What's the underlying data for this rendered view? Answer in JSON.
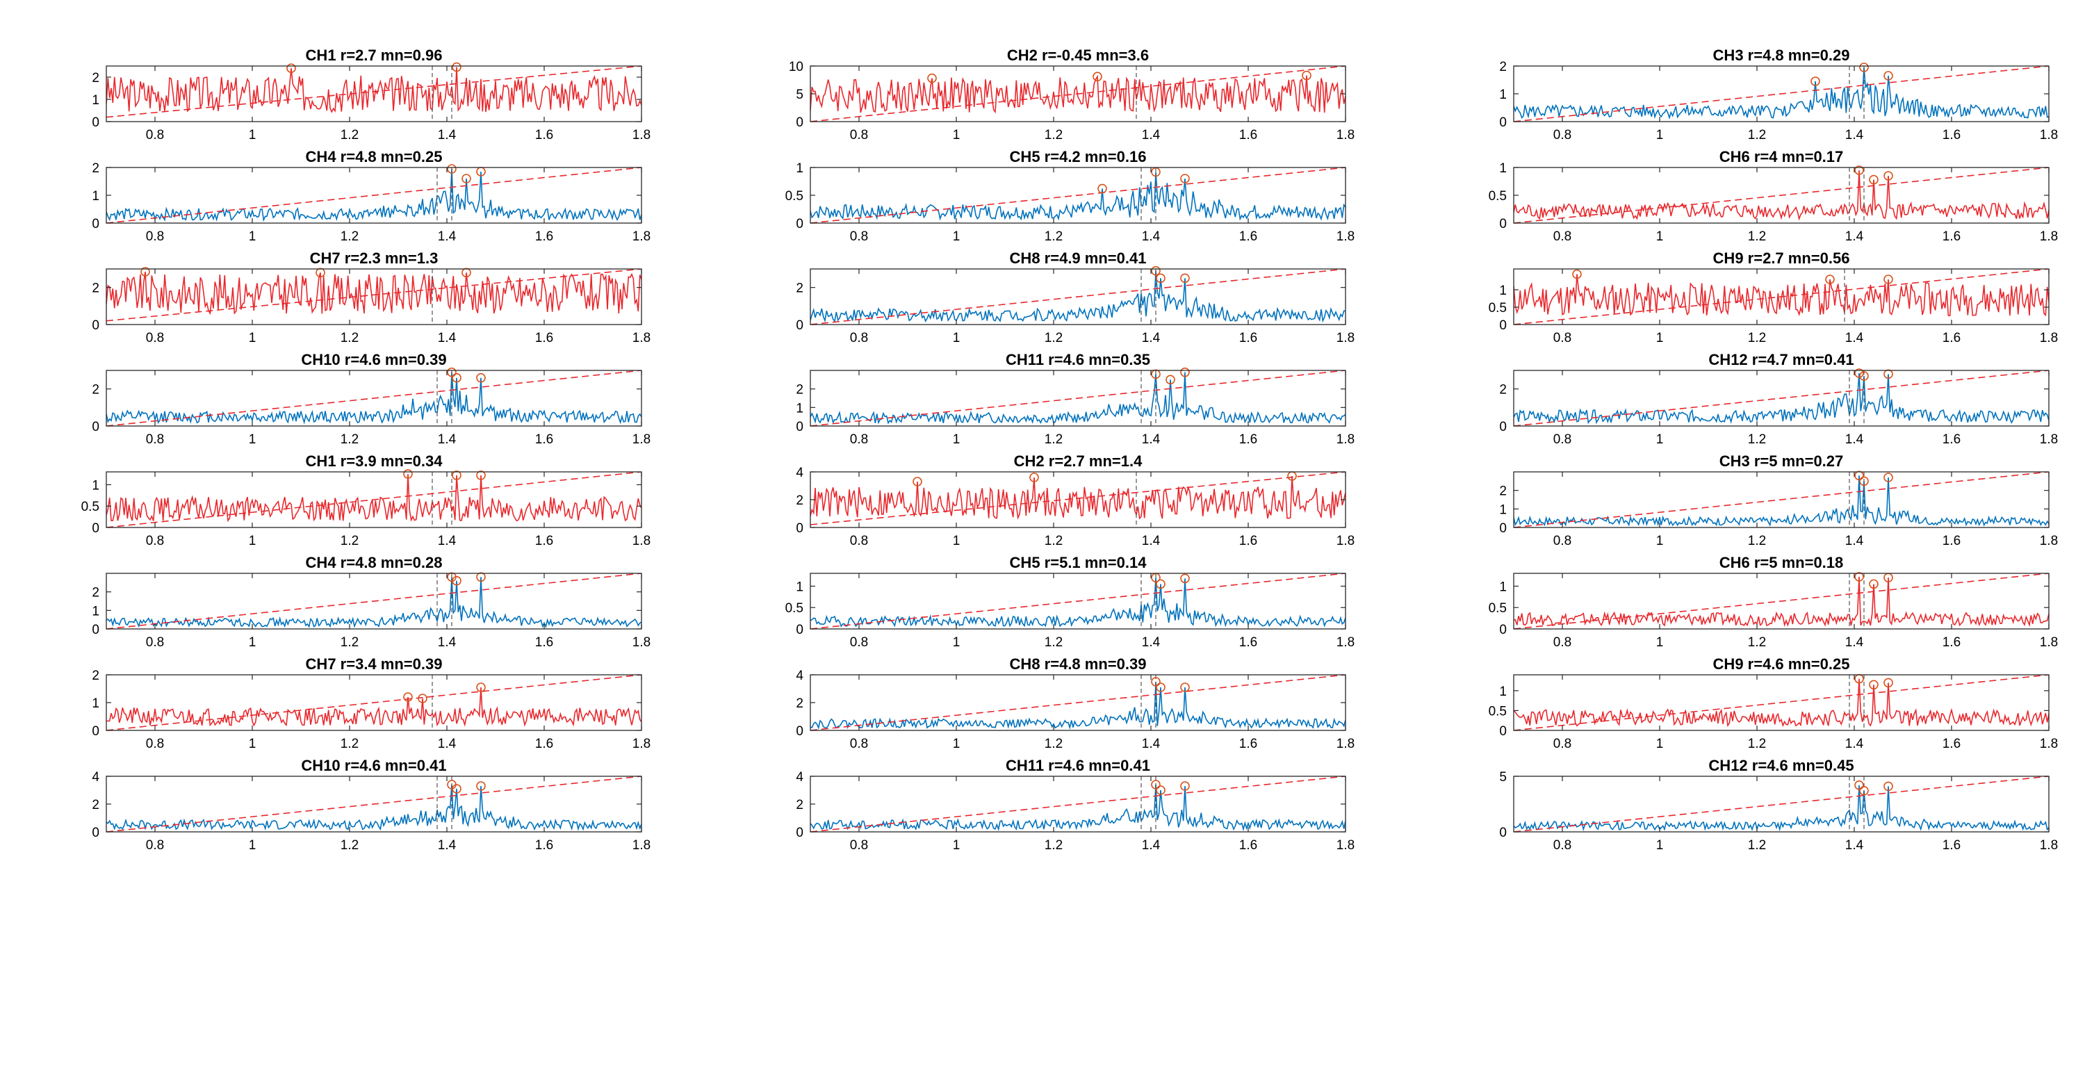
{
  "figure": {
    "rows": 8,
    "columns": 3,
    "colors": {
      "flagged_series": "#e8282d",
      "normal_series": "#0072bd",
      "threshold_line": "#e8282d",
      "marker": "#d95319",
      "axes": "#262626"
    }
  },
  "chart_data": [
    {
      "title": "CH1 r=2.7 mn=0.96",
      "type": "line",
      "color": "red",
      "xlim": [
        0.7,
        1.8
      ],
      "ylim": [
        0,
        2.5
      ],
      "yticks": [
        0,
        1,
        2
      ],
      "xticks": [
        0.8,
        1,
        1.2,
        1.4,
        1.6,
        1.8
      ],
      "threshold": [
        0.2,
        2.5
      ],
      "peaks": [
        [
          1.08,
          2.4
        ],
        [
          1.42,
          2.45
        ]
      ],
      "base": 0.96,
      "noise": 0.55,
      "vlines": [
        1.37,
        1.41
      ]
    },
    {
      "title": "CH2 r=-0.45 mn=3.6",
      "type": "line",
      "color": "red",
      "xlim": [
        0.7,
        1.8
      ],
      "ylim": [
        0,
        10
      ],
      "yticks": [
        0,
        5,
        10
      ],
      "xticks": [
        0.8,
        1,
        1.2,
        1.4,
        1.6,
        1.8
      ],
      "threshold": [
        0,
        10
      ],
      "peaks": [
        [
          0.95,
          7.8
        ],
        [
          1.29,
          8.1
        ],
        [
          1.72,
          8.3
        ]
      ],
      "base": 3.6,
      "noise": 0.6,
      "vlines": [
        1.37
      ]
    },
    {
      "title": "CH3 r=4.8 mn=0.29",
      "type": "line",
      "color": "blue",
      "xlim": [
        0.7,
        1.8
      ],
      "ylim": [
        0,
        2
      ],
      "yticks": [
        0,
        1,
        2
      ],
      "xticks": [
        0.8,
        1,
        1.2,
        1.4,
        1.6,
        1.8
      ],
      "threshold": [
        0,
        2
      ],
      "peaks": [
        [
          1.32,
          1.45
        ],
        [
          1.42,
          1.95
        ],
        [
          1.47,
          1.65
        ]
      ],
      "base": 0.29,
      "noise": 0.5,
      "vlines": [
        1.39,
        1.42
      ]
    },
    {
      "title": "CH4 r=4.8 mn=0.25",
      "type": "line",
      "color": "blue",
      "xlim": [
        0.7,
        1.8
      ],
      "ylim": [
        0,
        2
      ],
      "yticks": [
        0,
        1,
        2
      ],
      "xticks": [
        0.8,
        1,
        1.2,
        1.4,
        1.6,
        1.8
      ],
      "threshold": [
        0,
        2
      ],
      "peaks": [
        [
          1.41,
          1.95
        ],
        [
          1.44,
          1.6
        ],
        [
          1.47,
          1.85
        ]
      ],
      "base": 0.25,
      "noise": 0.5,
      "vlines": [
        1.38,
        1.41
      ]
    },
    {
      "title": "CH5 r=4.2 mn=0.16",
      "type": "line",
      "color": "blue",
      "xlim": [
        0.7,
        1.8
      ],
      "ylim": [
        0,
        1
      ],
      "yticks": [
        0,
        0.5,
        1
      ],
      "xticks": [
        0.8,
        1,
        1.2,
        1.4,
        1.6,
        1.8
      ],
      "threshold": [
        0,
        1
      ],
      "peaks": [
        [
          1.3,
          0.62
        ],
        [
          1.41,
          0.92
        ],
        [
          1.47,
          0.8
        ]
      ],
      "base": 0.16,
      "noise": 0.5,
      "vlines": [
        1.38,
        1.41
      ]
    },
    {
      "title": "CH6 r=4 mn=0.17",
      "type": "line",
      "color": "red",
      "xlim": [
        0.7,
        1.8
      ],
      "ylim": [
        0,
        1
      ],
      "yticks": [
        0,
        0.5,
        1
      ],
      "xticks": [
        0.8,
        1,
        1.2,
        1.4,
        1.6,
        1.8
      ],
      "threshold": [
        0,
        1
      ],
      "peaks": [
        [
          1.41,
          0.95
        ],
        [
          1.44,
          0.78
        ],
        [
          1.47,
          0.85
        ]
      ],
      "base": 0.17,
      "noise": 0.5,
      "vlines": [
        1.39,
        1.42
      ]
    },
    {
      "title": "CH7 r=2.3 mn=1.3",
      "type": "line",
      "color": "red",
      "xlim": [
        0.7,
        1.8
      ],
      "ylim": [
        0,
        3
      ],
      "yticks": [
        0,
        2
      ],
      "xticks": [
        0.8,
        1,
        1.2,
        1.4,
        1.6,
        1.8
      ],
      "threshold": [
        0.2,
        3
      ],
      "peaks": [
        [
          0.78,
          2.85
        ],
        [
          1.14,
          2.8
        ],
        [
          1.44,
          2.8
        ]
      ],
      "base": 1.3,
      "noise": 0.5,
      "vlines": [
        1.37
      ]
    },
    {
      "title": "CH8 r=4.9 mn=0.41",
      "type": "line",
      "color": "blue",
      "xlim": [
        0.7,
        1.8
      ],
      "ylim": [
        0,
        3
      ],
      "yticks": [
        0,
        2
      ],
      "xticks": [
        0.8,
        1,
        1.2,
        1.4,
        1.6,
        1.8
      ],
      "threshold": [
        0,
        3
      ],
      "peaks": [
        [
          1.41,
          2.9
        ],
        [
          1.42,
          2.5
        ],
        [
          1.47,
          2.5
        ]
      ],
      "base": 0.41,
      "noise": 0.5,
      "vlines": [
        1.38,
        1.41
      ]
    },
    {
      "title": "CH9 r=2.7 mn=0.56",
      "type": "line",
      "color": "red",
      "xlim": [
        0.7,
        1.8
      ],
      "ylim": [
        0,
        1.6
      ],
      "yticks": [
        0,
        0.5,
        1
      ],
      "xticks": [
        0.8,
        1,
        1.2,
        1.4,
        1.6,
        1.8
      ],
      "threshold": [
        0,
        1.6
      ],
      "peaks": [
        [
          0.83,
          1.45
        ],
        [
          1.35,
          1.3
        ],
        [
          1.47,
          1.3
        ]
      ],
      "base": 0.56,
      "noise": 0.55,
      "vlines": [
        1.38
      ]
    },
    {
      "title": "CH10 r=4.6 mn=0.39",
      "type": "line",
      "color": "blue",
      "xlim": [
        0.7,
        1.8
      ],
      "ylim": [
        0,
        3
      ],
      "yticks": [
        0,
        2
      ],
      "xticks": [
        0.8,
        1,
        1.2,
        1.4,
        1.6,
        1.8
      ],
      "threshold": [
        0,
        3
      ],
      "peaks": [
        [
          1.41,
          2.9
        ],
        [
          1.42,
          2.6
        ],
        [
          1.47,
          2.6
        ]
      ],
      "base": 0.39,
      "noise": 0.5,
      "vlines": [
        1.38,
        1.41
      ]
    },
    {
      "title": "CH11 r=4.6 mn=0.35",
      "type": "line",
      "color": "blue",
      "xlim": [
        0.7,
        1.8
      ],
      "ylim": [
        0,
        3
      ],
      "yticks": [
        0,
        1,
        2
      ],
      "xticks": [
        0.8,
        1,
        1.2,
        1.4,
        1.6,
        1.8
      ],
      "threshold": [
        0,
        3
      ],
      "peaks": [
        [
          1.41,
          2.8
        ],
        [
          1.44,
          2.5
        ],
        [
          1.47,
          2.9
        ]
      ],
      "base": 0.35,
      "noise": 0.5,
      "vlines": [
        1.38,
        1.41
      ]
    },
    {
      "title": "CH12 r=4.7 mn=0.41",
      "type": "line",
      "color": "blue",
      "xlim": [
        0.7,
        1.8
      ],
      "ylim": [
        0,
        3
      ],
      "yticks": [
        0,
        2
      ],
      "xticks": [
        0.8,
        1,
        1.2,
        1.4,
        1.6,
        1.8
      ],
      "threshold": [
        0,
        3
      ],
      "peaks": [
        [
          1.41,
          2.85
        ],
        [
          1.42,
          2.7
        ],
        [
          1.47,
          2.8
        ]
      ],
      "base": 0.41,
      "noise": 0.5,
      "vlines": [
        1.39,
        1.42
      ]
    },
    {
      "title": "CH1 r=3.9 mn=0.34",
      "type": "line",
      "color": "red",
      "xlim": [
        0.7,
        1.8
      ],
      "ylim": [
        0,
        1.3
      ],
      "yticks": [
        0,
        0.5,
        1
      ],
      "xticks": [
        0.8,
        1,
        1.2,
        1.4,
        1.6,
        1.8
      ],
      "threshold": [
        0,
        1.3
      ],
      "peaks": [
        [
          1.32,
          1.25
        ],
        [
          1.42,
          1.22
        ],
        [
          1.47,
          1.22
        ]
      ],
      "base": 0.34,
      "noise": 0.5,
      "vlines": [
        1.37,
        1.41
      ]
    },
    {
      "title": "CH2 r=2.7 mn=1.4",
      "type": "line",
      "color": "red",
      "xlim": [
        0.7,
        1.8
      ],
      "ylim": [
        0,
        4
      ],
      "yticks": [
        0,
        2,
        4
      ],
      "xticks": [
        0.8,
        1,
        1.2,
        1.4,
        1.6,
        1.8
      ],
      "threshold": [
        0.2,
        4
      ],
      "peaks": [
        [
          0.92,
          3.3
        ],
        [
          1.16,
          3.6
        ],
        [
          1.69,
          3.7
        ]
      ],
      "base": 1.4,
      "noise": 0.5,
      "vlines": [
        1.37
      ]
    },
    {
      "title": "CH3 r=5 mn=0.27",
      "type": "line",
      "color": "blue",
      "xlim": [
        0.7,
        1.8
      ],
      "ylim": [
        0,
        3
      ],
      "yticks": [
        0,
        1,
        2
      ],
      "xticks": [
        0.8,
        1,
        1.2,
        1.4,
        1.6,
        1.8
      ],
      "threshold": [
        0,
        3
      ],
      "peaks": [
        [
          1.41,
          2.8
        ],
        [
          1.42,
          2.5
        ],
        [
          1.47,
          2.7
        ]
      ],
      "base": 0.27,
      "noise": 0.5,
      "vlines": [
        1.39,
        1.42
      ]
    },
    {
      "title": "CH4 r=4.8 mn=0.28",
      "type": "line",
      "color": "blue",
      "xlim": [
        0.7,
        1.8
      ],
      "ylim": [
        0,
        3
      ],
      "yticks": [
        0,
        1,
        2
      ],
      "xticks": [
        0.8,
        1,
        1.2,
        1.4,
        1.6,
        1.8
      ],
      "threshold": [
        0,
        3
      ],
      "peaks": [
        [
          1.41,
          2.8
        ],
        [
          1.42,
          2.6
        ],
        [
          1.47,
          2.8
        ]
      ],
      "base": 0.28,
      "noise": 0.5,
      "vlines": [
        1.38,
        1.41
      ]
    },
    {
      "title": "CH5 r=5.1 mn=0.14",
      "type": "line",
      "color": "blue",
      "xlim": [
        0.7,
        1.8
      ],
      "ylim": [
        0,
        1.3
      ],
      "yticks": [
        0,
        0.5,
        1
      ],
      "xticks": [
        0.8,
        1,
        1.2,
        1.4,
        1.6,
        1.8
      ],
      "threshold": [
        0,
        1.3
      ],
      "peaks": [
        [
          1.41,
          1.2
        ],
        [
          1.42,
          1.05
        ],
        [
          1.47,
          1.18
        ]
      ],
      "base": 0.14,
      "noise": 0.5,
      "vlines": [
        1.38,
        1.41
      ]
    },
    {
      "title": "CH6 r=5 mn=0.18",
      "type": "line",
      "color": "red",
      "xlim": [
        0.7,
        1.8
      ],
      "ylim": [
        0,
        1.3
      ],
      "yticks": [
        0,
        0.5,
        1
      ],
      "xticks": [
        0.8,
        1,
        1.2,
        1.4,
        1.6,
        1.8
      ],
      "threshold": [
        0,
        1.3
      ],
      "peaks": [
        [
          1.41,
          1.22
        ],
        [
          1.44,
          1.05
        ],
        [
          1.47,
          1.2
        ]
      ],
      "base": 0.18,
      "noise": 0.5,
      "vlines": [
        1.39,
        1.42
      ]
    },
    {
      "title": "CH7 r=3.4 mn=0.39",
      "type": "line",
      "color": "red",
      "xlim": [
        0.7,
        1.8
      ],
      "ylim": [
        0,
        2
      ],
      "yticks": [
        0,
        1,
        2
      ],
      "xticks": [
        0.8,
        1,
        1.2,
        1.4,
        1.6,
        1.8
      ],
      "threshold": [
        0,
        2
      ],
      "peaks": [
        [
          1.32,
          1.2
        ],
        [
          1.35,
          1.15
        ],
        [
          1.47,
          1.55
        ]
      ],
      "base": 0.39,
      "noise": 0.5,
      "vlines": [
        1.37
      ]
    },
    {
      "title": "CH8 r=4.8 mn=0.39",
      "type": "line",
      "color": "blue",
      "xlim": [
        0.7,
        1.8
      ],
      "ylim": [
        0,
        4
      ],
      "yticks": [
        0,
        2,
        4
      ],
      "xticks": [
        0.8,
        1,
        1.2,
        1.4,
        1.6,
        1.8
      ],
      "threshold": [
        0,
        4
      ],
      "peaks": [
        [
          1.41,
          3.5
        ],
        [
          1.42,
          3.1
        ],
        [
          1.47,
          3.1
        ]
      ],
      "base": 0.39,
      "noise": 0.5,
      "vlines": [
        1.38,
        1.41
      ]
    },
    {
      "title": "CH9 r=4.6 mn=0.25",
      "type": "line",
      "color": "red",
      "xlim": [
        0.7,
        1.8
      ],
      "ylim": [
        0,
        1.4
      ],
      "yticks": [
        0,
        0.5,
        1
      ],
      "xticks": [
        0.8,
        1,
        1.2,
        1.4,
        1.6,
        1.8
      ],
      "threshold": [
        0,
        1.4
      ],
      "peaks": [
        [
          1.41,
          1.3
        ],
        [
          1.44,
          1.15
        ],
        [
          1.47,
          1.2
        ]
      ],
      "base": 0.25,
      "noise": 0.5,
      "vlines": [
        1.39,
        1.42
      ]
    },
    {
      "title": "CH10 r=4.6 mn=0.41",
      "type": "line",
      "color": "blue",
      "xlim": [
        0.7,
        1.8
      ],
      "ylim": [
        0,
        4
      ],
      "yticks": [
        0,
        2,
        4
      ],
      "xticks": [
        0.8,
        1,
        1.2,
        1.4,
        1.6,
        1.8
      ],
      "threshold": [
        0,
        4
      ],
      "peaks": [
        [
          1.41,
          3.4
        ],
        [
          1.42,
          3.1
        ],
        [
          1.47,
          3.3
        ]
      ],
      "base": 0.41,
      "noise": 0.5,
      "vlines": [
        1.38,
        1.41
      ]
    },
    {
      "title": "CH11 r=4.6 mn=0.41",
      "type": "line",
      "color": "blue",
      "xlim": [
        0.7,
        1.8
      ],
      "ylim": [
        0,
        4
      ],
      "yticks": [
        0,
        2,
        4
      ],
      "xticks": [
        0.8,
        1,
        1.2,
        1.4,
        1.6,
        1.8
      ],
      "threshold": [
        0,
        4
      ],
      "peaks": [
        [
          1.41,
          3.4
        ],
        [
          1.42,
          3.0
        ],
        [
          1.47,
          3.3
        ]
      ],
      "base": 0.41,
      "noise": 0.5,
      "vlines": [
        1.38,
        1.41
      ]
    },
    {
      "title": "CH12 r=4.6 mn=0.45",
      "type": "line",
      "color": "blue",
      "xlim": [
        0.7,
        1.8
      ],
      "ylim": [
        0,
        5
      ],
      "yticks": [
        0,
        5
      ],
      "xticks": [
        0.8,
        1,
        1.2,
        1.4,
        1.6,
        1.8
      ],
      "threshold": [
        0,
        5
      ],
      "peaks": [
        [
          1.41,
          4.2
        ],
        [
          1.42,
          3.7
        ],
        [
          1.47,
          4.1
        ]
      ],
      "base": 0.45,
      "noise": 0.5,
      "vlines": [
        1.39,
        1.42
      ]
    }
  ]
}
